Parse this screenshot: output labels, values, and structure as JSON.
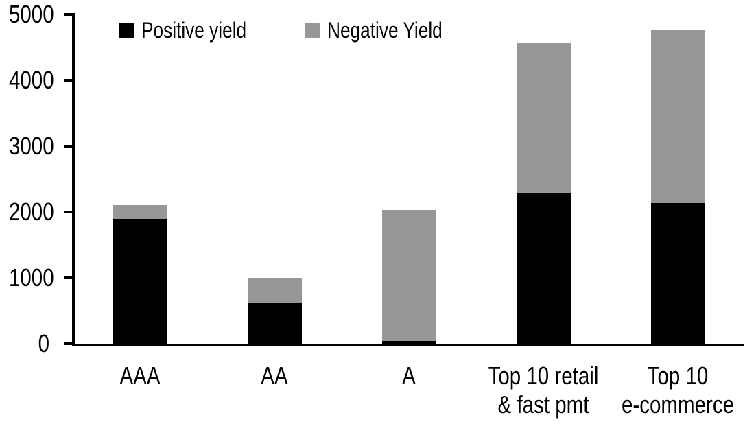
{
  "chart_data": {
    "type": "bar",
    "stacked": true,
    "title": "",
    "xlabel": "",
    "ylabel": "",
    "categories": [
      "AAA",
      "AA",
      "A",
      "Top 10 retail & fast pmt",
      "Top 10 e-commerce"
    ],
    "category_label_lines": [
      [
        "AAA"
      ],
      [
        "AA"
      ],
      [
        "A"
      ],
      [
        "Top 10 retail",
        "& fast pmt"
      ],
      [
        "Top 10",
        "e-commerce"
      ]
    ],
    "series": [
      {
        "name": "Positive yield",
        "color": "#000000",
        "values": [
          1900,
          620,
          40,
          2280,
          2140
        ]
      },
      {
        "name": "Negative Yield",
        "color": "#979797",
        "values": [
          210,
          380,
          1990,
          2280,
          2620
        ]
      }
    ],
    "stack_totals": [
      2110,
      1000,
      2030,
      4560,
      4760
    ],
    "ylim": [
      0,
      5000
    ],
    "yticks": [
      0,
      1000,
      2000,
      3000,
      4000,
      5000
    ],
    "grid": false,
    "legend_position": "top"
  },
  "colors": {
    "background": "#ffffff",
    "axis": "#000000",
    "text": "#000000",
    "positive_series": "#000000",
    "negative_series": "#979797"
  }
}
